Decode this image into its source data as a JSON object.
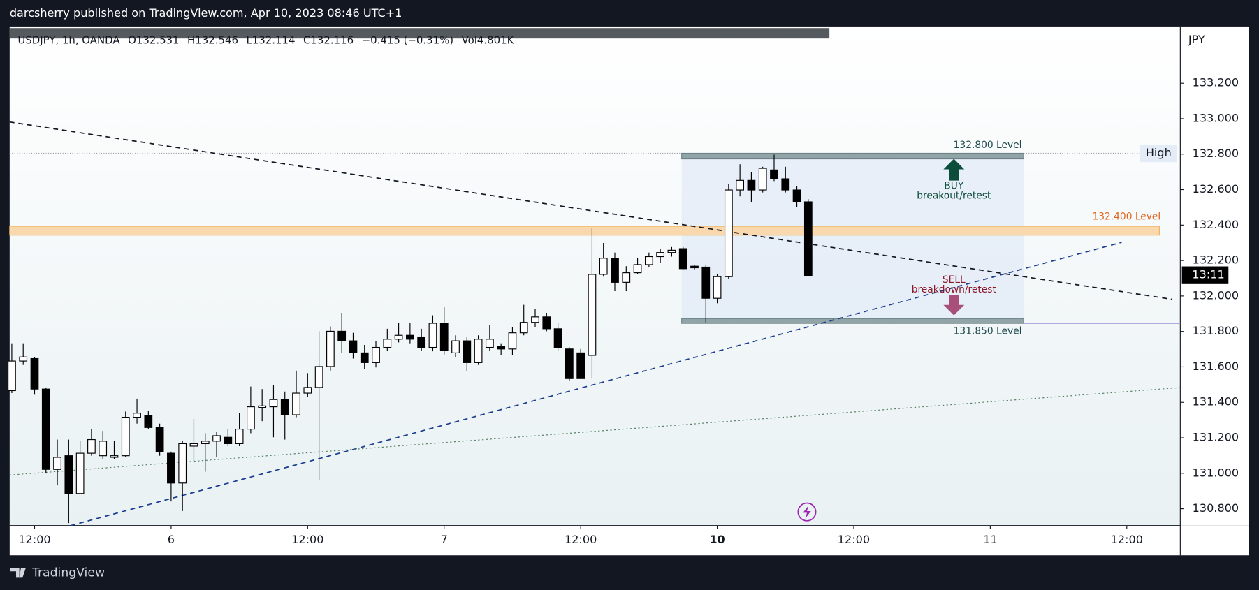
{
  "chart_data": {
    "type": "candlestick",
    "title": "darcsherry published on TradingView.com, Apr 10, 2023 08:46 UTC+1",
    "legend": [
      "USDJPY, 1h, OANDA",
      "O132.531",
      "H132.546",
      "L132.114",
      "C132.116",
      "−0.415 (−0.31%)",
      "Vol4.801K"
    ],
    "currency": "JPY",
    "countdown": "13:11",
    "high_label": "High",
    "brand": "TradingView",
    "annotations": [
      "132.800 Level",
      "132.400 Level",
      "131.850 Level",
      "BUY",
      "breakout/retest",
      "SELL",
      "breakdown/retest"
    ],
    "up_color": "#ffffff",
    "down_color": "#000000",
    "x": [
      -2,
      -1,
      0,
      1,
      2,
      3,
      4,
      5,
      6,
      7,
      8,
      9,
      10,
      11,
      12,
      13,
      14,
      15,
      16,
      17,
      18,
      19,
      20,
      21,
      22,
      23,
      24,
      25,
      26,
      27,
      28,
      29,
      30,
      31,
      32,
      33,
      34,
      35,
      36,
      37,
      38,
      39,
      40,
      41,
      42,
      43,
      44,
      45,
      46,
      47,
      48,
      49,
      50,
      51,
      52,
      53,
      54,
      55,
      56,
      57,
      58,
      59,
      60,
      61,
      62,
      63,
      64,
      65,
      66,
      67,
      68
    ],
    "open": [
      131.466,
      131.633,
      131.647,
      131.475,
      131.022,
      131.099,
      130.886,
      131.113,
      131.099,
      131.09,
      131.099,
      131.316,
      131.325,
      131.258,
      131.113,
      130.945,
      131.153,
      131.167,
      131.181,
      131.203,
      131.167,
      131.249,
      131.371,
      131.375,
      131.416,
      131.33,
      131.452,
      131.484,
      131.602,
      131.801,
      131.747,
      131.679,
      131.624,
      131.71,
      131.756,
      131.778,
      131.769,
      131.71,
      131.846,
      131.679,
      131.747,
      131.624,
      131.71,
      131.715,
      131.701,
      131.792,
      131.851,
      131.882,
      131.815,
      131.701,
      131.679,
      131.665,
      132.122,
      132.213,
      132.077,
      132.131,
      132.177,
      132.222,
      132.245,
      132.267,
      132.168,
      132.163,
      131.987,
      132.109,
      132.598,
      132.652,
      132.598,
      132.711,
      132.661,
      132.598,
      132.531
    ],
    "high": [
      131.733,
      131.733,
      131.656,
      131.484,
      131.19,
      131.19,
      131.181,
      131.249,
      131.239,
      131.181,
      131.348,
      131.421,
      131.353,
      131.28,
      131.122,
      131.181,
      131.307,
      131.226,
      131.235,
      131.249,
      131.339,
      131.489,
      131.475,
      131.498,
      131.461,
      131.579,
      131.565,
      131.801,
      131.828,
      131.905,
      131.792,
      131.724,
      131.747,
      131.815,
      131.846,
      131.846,
      131.815,
      131.891,
      131.937,
      131.778,
      131.769,
      131.778,
      131.837,
      131.733,
      131.824,
      131.95,
      131.928,
      131.905,
      131.846,
      131.71,
      131.701,
      132.381,
      132.299,
      132.245,
      132.168,
      132.213,
      132.245,
      132.267,
      132.276,
      132.276,
      132.177,
      132.177,
      132.122,
      132.63,
      132.743,
      132.697,
      132.729,
      132.797,
      132.729,
      132.621,
      132.546
    ],
    "low": [
      131.452,
      131.611,
      131.443,
      130.999,
      130.932,
      130.719,
      130.882,
      131.099,
      131.081,
      131.081,
      131.09,
      131.28,
      131.249,
      131.099,
      130.841,
      130.787,
      131.067,
      131.009,
      131.09,
      131.153,
      131.153,
      131.226,
      131.294,
      131.203,
      131.19,
      131.316,
      131.43,
      130.963,
      131.579,
      131.679,
      131.647,
      131.588,
      131.597,
      131.692,
      131.738,
      131.733,
      131.692,
      131.688,
      131.67,
      131.656,
      131.575,
      131.611,
      131.692,
      131.665,
      131.665,
      131.778,
      131.824,
      131.801,
      131.692,
      131.52,
      131.534,
      131.534,
      132.109,
      132.027,
      132.027,
      132.122,
      132.163,
      132.186,
      132.222,
      132.145,
      132.15,
      131.846,
      131.959,
      132.095,
      132.562,
      132.53,
      132.584,
      132.648,
      132.584,
      132.503,
      132.114
    ],
    "close": [
      131.633,
      131.656,
      131.475,
      131.022,
      131.09,
      130.886,
      131.113,
      131.19,
      131.181,
      131.099,
      131.316,
      131.339,
      131.258,
      131.122,
      130.945,
      131.167,
      131.167,
      131.181,
      131.212,
      131.167,
      131.249,
      131.375,
      131.38,
      131.416,
      131.33,
      131.452,
      131.484,
      131.602,
      131.801,
      131.747,
      131.679,
      131.624,
      131.71,
      131.756,
      131.778,
      131.756,
      131.71,
      131.846,
      131.692,
      131.747,
      131.624,
      131.756,
      131.756,
      131.701,
      131.792,
      131.851,
      131.882,
      131.815,
      131.71,
      131.534,
      131.534,
      132.122,
      132.213,
      132.077,
      132.131,
      132.177,
      132.222,
      132.245,
      132.258,
      132.154,
      132.159,
      131.987,
      132.109,
      132.598,
      132.652,
      132.598,
      132.72,
      132.661,
      132.598,
      132.53,
      132.116
    ],
    "xlim": [
      -2.19,
      100.7
    ],
    "xticks": [
      {
        "value": 0,
        "label": "12:00"
      },
      {
        "value": 12,
        "label": "6"
      },
      {
        "value": 24,
        "label": "12:00"
      },
      {
        "value": 36,
        "label": "7"
      },
      {
        "value": 48,
        "label": "12:00"
      },
      {
        "value": 60,
        "label": "10",
        "bold": true
      },
      {
        "value": 72,
        "label": "12:00"
      },
      {
        "value": 84,
        "label": "11"
      },
      {
        "value": 96,
        "label": "12:00"
      }
    ],
    "ylim": [
      130.705,
      133.52
    ],
    "yticks": [
      {
        "value": 130.8,
        "label": "130.800"
      },
      {
        "value": 131.0,
        "label": "131.000"
      },
      {
        "value": 131.2,
        "label": "131.200"
      },
      {
        "value": 131.4,
        "label": "131.400"
      },
      {
        "value": 131.6,
        "label": "131.600"
      },
      {
        "value": 131.8,
        "label": "131.800"
      },
      {
        "value": 132.0,
        "label": "132.000"
      },
      {
        "value": 132.2,
        "label": "132.200"
      },
      {
        "value": 132.4,
        "label": "132.400"
      },
      {
        "value": 132.6,
        "label": "132.600"
      },
      {
        "value": 132.8,
        "label": "132.800"
      },
      {
        "value": 133.0,
        "label": "133.000"
      },
      {
        "value": 133.2,
        "label": "133.200"
      }
    ],
    "grid": false
  }
}
